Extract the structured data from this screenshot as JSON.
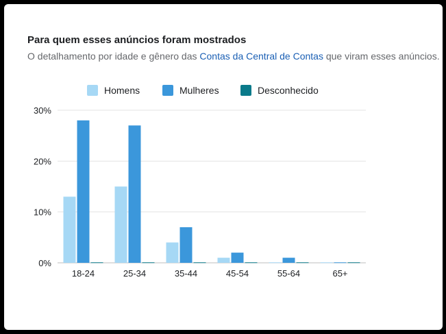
{
  "header": {
    "title": "Para quem esses anúncios foram mostrados",
    "subtitle_before": "O detalhamento por idade e gênero das ",
    "subtitle_link": "Contas da Central de Contas",
    "subtitle_after": " que viram esses anúncios."
  },
  "chart_data": {
    "type": "bar",
    "title": "",
    "xlabel": "",
    "ylabel": "",
    "categories": [
      "18-24",
      "25-34",
      "35-44",
      "45-54",
      "55-64",
      "65+"
    ],
    "series": [
      {
        "name": "Homens",
        "color": "#a6d8f5",
        "values": [
          13,
          15,
          4,
          1,
          0.1,
          0.1
        ]
      },
      {
        "name": "Mulheres",
        "color": "#3b97db",
        "values": [
          28,
          27,
          7,
          2,
          1,
          0.1
        ]
      },
      {
        "name": "Desconhecido",
        "color": "#0a7a8a",
        "values": [
          0.1,
          0.1,
          0.1,
          0.1,
          0.1,
          0.1
        ]
      }
    ],
    "ylim": [
      0,
      30
    ],
    "yticks": [
      0,
      10,
      20,
      30
    ],
    "ytick_labels": [
      "0%",
      "10%",
      "20%",
      "30%"
    ],
    "grid": true,
    "legend_position": "top"
  }
}
